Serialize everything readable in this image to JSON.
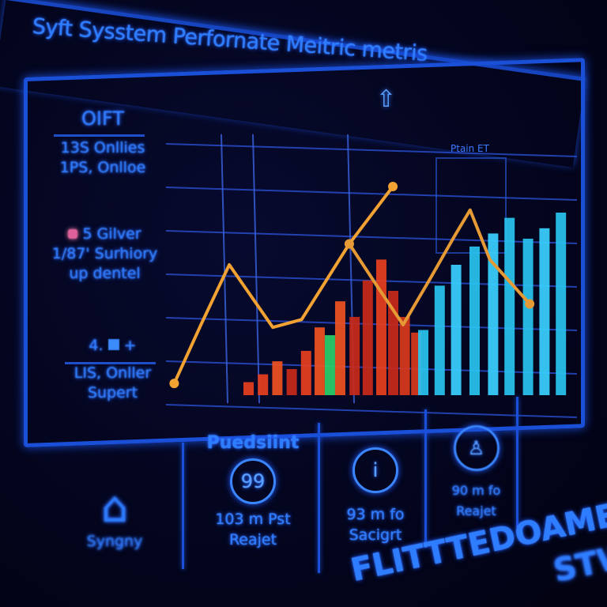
{
  "header": {
    "title": "Syft Sysstem Perfornate Meitric metris"
  },
  "sidebar": {
    "block1": {
      "heading": "OIFT",
      "lines": [
        "13S Onllies",
        "1PS, Onlloe"
      ]
    },
    "block2": {
      "lines": [
        "5 Gilver",
        "1/87' Surhiory",
        "up dentel"
      ]
    },
    "block3": {
      "heading": "4.",
      "lines": [
        "LIS, Onller",
        "Supert"
      ]
    }
  },
  "chart_data": {
    "type": "bar",
    "title": "",
    "legend_label": "Ptain ET",
    "grid": true,
    "ylim": [
      0,
      100
    ],
    "xlim": [
      0,
      100
    ],
    "bars": [
      {
        "x": 20,
        "value": 5,
        "color": "#e8401e"
      },
      {
        "x": 23.5,
        "value": 8,
        "color": "#e8401e"
      },
      {
        "x": 27,
        "value": 13,
        "color": "#f0521f"
      },
      {
        "x": 30.5,
        "value": 10,
        "color": "#c92a1a"
      },
      {
        "x": 34,
        "value": 17,
        "color": "#e8401e"
      },
      {
        "x": 37.3,
        "value": 26,
        "color": "#f0521f"
      },
      {
        "x": 39.8,
        "value": 23,
        "color": "#2bd06a"
      },
      {
        "x": 42.3,
        "value": 36,
        "color": "#f0521f"
      },
      {
        "x": 45.8,
        "value": 30,
        "color": "#c92a1a"
      },
      {
        "x": 49,
        "value": 44,
        "color": "#c92a1a"
      },
      {
        "x": 52.3,
        "value": 52,
        "color": "#e8401e"
      },
      {
        "x": 55.2,
        "value": 40,
        "color": "#c92a1a"
      },
      {
        "x": 58,
        "value": 30,
        "color": "#d93a1c"
      },
      {
        "x": 60.8,
        "value": 24,
        "color": "#d93a1c"
      },
      {
        "x": 62.5,
        "value": 25,
        "color": "#29c4f0"
      },
      {
        "x": 66.5,
        "value": 42,
        "color": "#29c4f0"
      },
      {
        "x": 70.5,
        "value": 50,
        "color": "#3ad0ff"
      },
      {
        "x": 75,
        "value": 57,
        "color": "#29c4f0"
      },
      {
        "x": 79.5,
        "value": 62,
        "color": "#3ad0ff"
      },
      {
        "x": 83.5,
        "value": 68,
        "color": "#29c4f0"
      },
      {
        "x": 88,
        "value": 60,
        "color": "#29c4f0"
      },
      {
        "x": 92,
        "value": 64,
        "color": "#3ad0ff"
      },
      {
        "x": 96,
        "value": 70,
        "color": "#29c4f0"
      }
    ],
    "series": [
      {
        "color": "#f2a233",
        "points": [
          [
            2,
            4.5
          ],
          [
            8.5,
            27
          ],
          [
            15.4,
            50
          ],
          [
            26,
            26
          ],
          [
            33,
            29
          ],
          [
            44.6,
            58
          ],
          [
            55.2,
            80
          ]
        ]
      },
      {
        "color": "#e69a35",
        "points": [
          [
            44.6,
            58
          ],
          [
            51.3,
            42
          ],
          [
            57.7,
            27
          ],
          [
            64.4,
            45
          ],
          [
            70.2,
            61
          ],
          [
            74,
            71
          ],
          [
            78.8,
            52
          ],
          [
            88.5,
            35
          ]
        ]
      }
    ]
  },
  "cards": [
    {
      "label": "",
      "lines": [
        "Syngny"
      ],
      "icon": "home-icon"
    },
    {
      "label": "Puedsiint",
      "value": "99",
      "lines": [
        "103 m Pst",
        "Reajet"
      ],
      "icon": "gauge-icon"
    },
    {
      "label": "",
      "value": "i",
      "lines": [
        "93 m fo",
        "Sacigrt"
      ],
      "icon": "info-icon"
    },
    {
      "label": "",
      "value": "♙",
      "lines": [
        "90 m fo",
        "Reajet"
      ],
      "icon": "user-icon"
    }
  ],
  "footer": {
    "text": "FLITTTEDOAMES",
    "text2": "STW"
  }
}
